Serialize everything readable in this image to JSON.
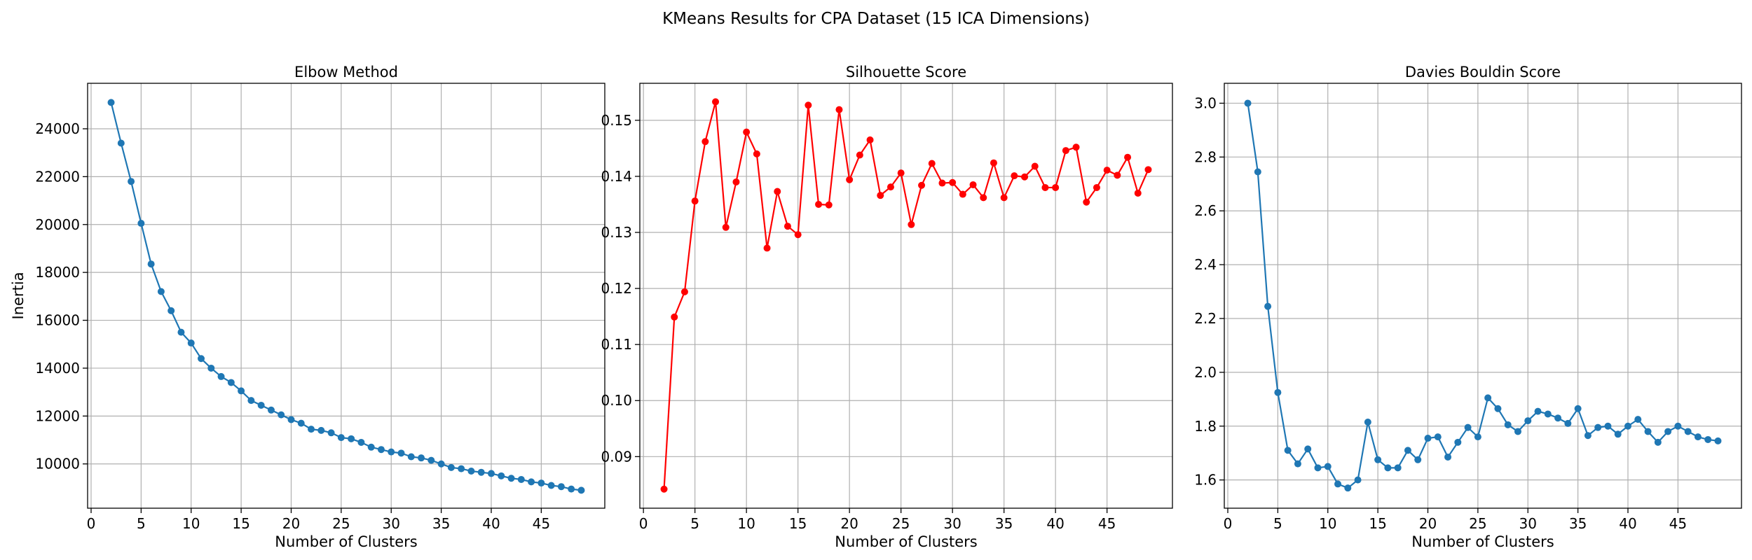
{
  "figure": {
    "title": "KMeans Results for CPA Dataset (15 ICA Dimensions)"
  },
  "chart_data": [
    {
      "type": "line",
      "title": "Elbow Method",
      "xlabel": "Number of Clusters",
      "ylabel": "Inertia",
      "xlim": [
        -0.35,
        51.35
      ],
      "ylim": [
        8150,
        25900
      ],
      "xticks": [
        0,
        5,
        10,
        15,
        20,
        25,
        30,
        35,
        40,
        45
      ],
      "xtick_labels": [
        "0",
        "5",
        "10",
        "15",
        "20",
        "25",
        "30",
        "35",
        "40",
        "45"
      ],
      "yticks": [
        10000,
        12000,
        14000,
        16000,
        18000,
        20000,
        22000,
        24000
      ],
      "ytick_labels": [
        "10000",
        "12000",
        "14000",
        "16000",
        "18000",
        "20000",
        "22000",
        "24000"
      ],
      "grid": true,
      "color": "#1f77b4",
      "x": [
        2,
        3,
        4,
        5,
        6,
        7,
        8,
        9,
        10,
        11,
        12,
        13,
        14,
        15,
        16,
        17,
        18,
        19,
        20,
        21,
        22,
        23,
        24,
        25,
        26,
        27,
        28,
        29,
        30,
        31,
        32,
        33,
        34,
        35,
        36,
        37,
        38,
        39,
        40,
        41,
        42,
        43,
        44,
        45,
        46,
        47,
        48,
        49
      ],
      "y": [
        25100,
        23400,
        21800,
        20050,
        18350,
        17200,
        16400,
        15500,
        15050,
        14400,
        14000,
        13650,
        13400,
        13050,
        12650,
        12450,
        12250,
        12050,
        11850,
        11700,
        11450,
        11400,
        11300,
        11100,
        11050,
        10900,
        10700,
        10600,
        10500,
        10450,
        10300,
        10250,
        10150,
        10000,
        9850,
        9800,
        9700,
        9650,
        9600,
        9500,
        9400,
        9350,
        9250,
        9200,
        9100,
        9050,
        8950,
        8900
      ]
    },
    {
      "type": "line",
      "title": "Silhouette Score",
      "xlabel": "Number of Clusters",
      "ylabel": "",
      "xlim": [
        -0.35,
        51.35
      ],
      "ylim": [
        0.0808,
        0.1566
      ],
      "xticks": [
        0,
        5,
        10,
        15,
        20,
        25,
        30,
        35,
        40,
        45
      ],
      "xtick_labels": [
        "0",
        "5",
        "10",
        "15",
        "20",
        "25",
        "30",
        "35",
        "40",
        "45"
      ],
      "yticks": [
        0.09,
        0.1,
        0.11,
        0.12,
        0.13,
        0.14,
        0.15
      ],
      "ytick_labels": [
        "0.09",
        "0.10",
        "0.11",
        "0.12",
        "0.13",
        "0.14",
        "0.15"
      ],
      "grid": true,
      "color": "#ff0000",
      "x": [
        2,
        3,
        4,
        5,
        6,
        7,
        8,
        9,
        10,
        11,
        12,
        13,
        14,
        15,
        16,
        17,
        18,
        19,
        20,
        21,
        22,
        23,
        24,
        25,
        26,
        27,
        28,
        29,
        30,
        31,
        32,
        33,
        34,
        35,
        36,
        37,
        38,
        39,
        40,
        41,
        42,
        43,
        44,
        45,
        46,
        47,
        48,
        49
      ],
      "y": [
        0.0842,
        0.1149,
        0.1194,
        0.1356,
        0.1462,
        0.1533,
        0.1309,
        0.139,
        0.1479,
        0.144,
        0.1272,
        0.1373,
        0.1311,
        0.1296,
        0.1527,
        0.135,
        0.1349,
        0.1519,
        0.1394,
        0.1438,
        0.1465,
        0.1366,
        0.1381,
        0.1406,
        0.1314,
        0.1384,
        0.1423,
        0.1388,
        0.1389,
        0.1368,
        0.1385,
        0.1362,
        0.1424,
        0.1362,
        0.1401,
        0.1399,
        0.1418,
        0.138,
        0.138,
        0.1446,
        0.1452,
        0.1354,
        0.138,
        0.1411,
        0.1402,
        0.1434,
        0.137,
        0.1412
      ]
    },
    {
      "type": "line",
      "title": "Davies Bouldin Score",
      "xlabel": "Number of Clusters",
      "ylabel": "",
      "xlim": [
        -0.35,
        51.35
      ],
      "ylim": [
        1.495,
        3.074
      ],
      "xticks": [
        0,
        5,
        10,
        15,
        20,
        25,
        30,
        35,
        40,
        45
      ],
      "xtick_labels": [
        "0",
        "5",
        "10",
        "15",
        "20",
        "25",
        "30",
        "35",
        "40",
        "45"
      ],
      "yticks": [
        1.6,
        1.8,
        2.0,
        2.2,
        2.4,
        2.6,
        2.8,
        3.0
      ],
      "ytick_labels": [
        "1.6",
        "1.8",
        "2.0",
        "2.2",
        "2.4",
        "2.6",
        "2.8",
        "3.0"
      ],
      "grid": true,
      "color": "#1f77b4",
      "x": [
        2,
        3,
        4,
        5,
        6,
        7,
        8,
        9,
        10,
        11,
        12,
        13,
        14,
        15,
        16,
        17,
        18,
        19,
        20,
        21,
        22,
        23,
        24,
        25,
        26,
        27,
        28,
        29,
        30,
        31,
        32,
        33,
        34,
        35,
        36,
        37,
        38,
        39,
        40,
        41,
        42,
        43,
        44,
        45,
        46,
        47,
        48,
        49
      ],
      "y": [
        3.0,
        2.745,
        2.245,
        1.925,
        1.71,
        1.66,
        1.715,
        1.645,
        1.65,
        1.585,
        1.57,
        1.6,
        1.815,
        1.675,
        1.645,
        1.645,
        1.71,
        1.675,
        1.755,
        1.76,
        1.685,
        1.74,
        1.795,
        1.76,
        1.905,
        1.865,
        1.805,
        1.78,
        1.82,
        1.855,
        1.845,
        1.83,
        1.81,
        1.865,
        1.765,
        1.795,
        1.8,
        1.77,
        1.8,
        1.825,
        1.78,
        1.74,
        1.78,
        1.8,
        1.78,
        1.76,
        1.75,
        1.745
      ]
    }
  ]
}
